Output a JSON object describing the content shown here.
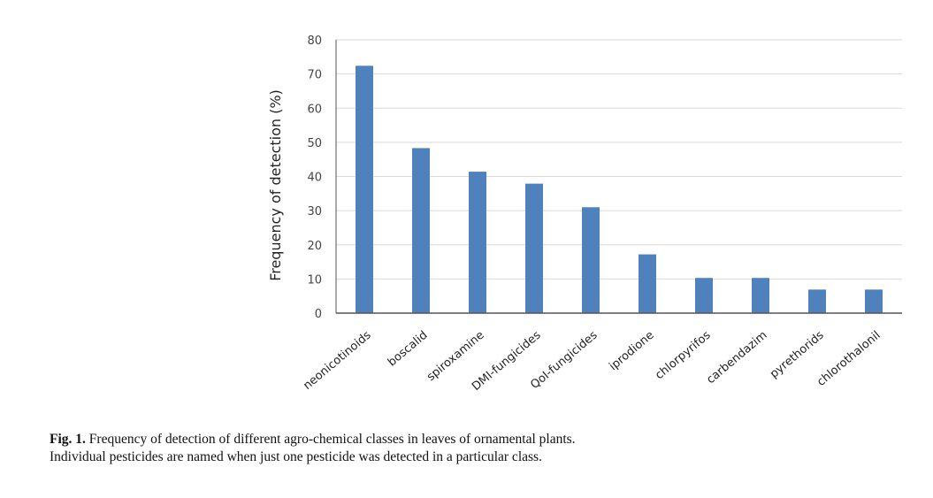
{
  "chart_data": {
    "type": "bar",
    "categories": [
      "neonicotinoids",
      "boscalid",
      "spiroxamine",
      "DMI-fungicides",
      "QoI-fungicides",
      "iprodione",
      "chlorpyrifos",
      "carbendazim",
      "pyrethorids",
      "chlorothalonil"
    ],
    "values": [
      72.4,
      48.3,
      41.4,
      37.9,
      31.0,
      17.2,
      10.3,
      10.3,
      6.9,
      6.9
    ],
    "title": "",
    "xlabel": "",
    "ylabel": "Frequency of detection (%)",
    "ylim": [
      0,
      80
    ],
    "yticks": [
      0,
      10,
      20,
      30,
      40,
      50,
      60,
      70,
      80
    ],
    "grid": true,
    "bar_color": "#4f81bd",
    "grid_color": "#d9d9d9",
    "axis_color": "#555555"
  },
  "caption": {
    "lead": "Fig. 1.",
    "text": " Frequency of detection of different agro-chemical classes in leaves of ornamental plants.",
    "line2": "Individual pesticides are named when just one pesticide was detected in a particular class."
  }
}
